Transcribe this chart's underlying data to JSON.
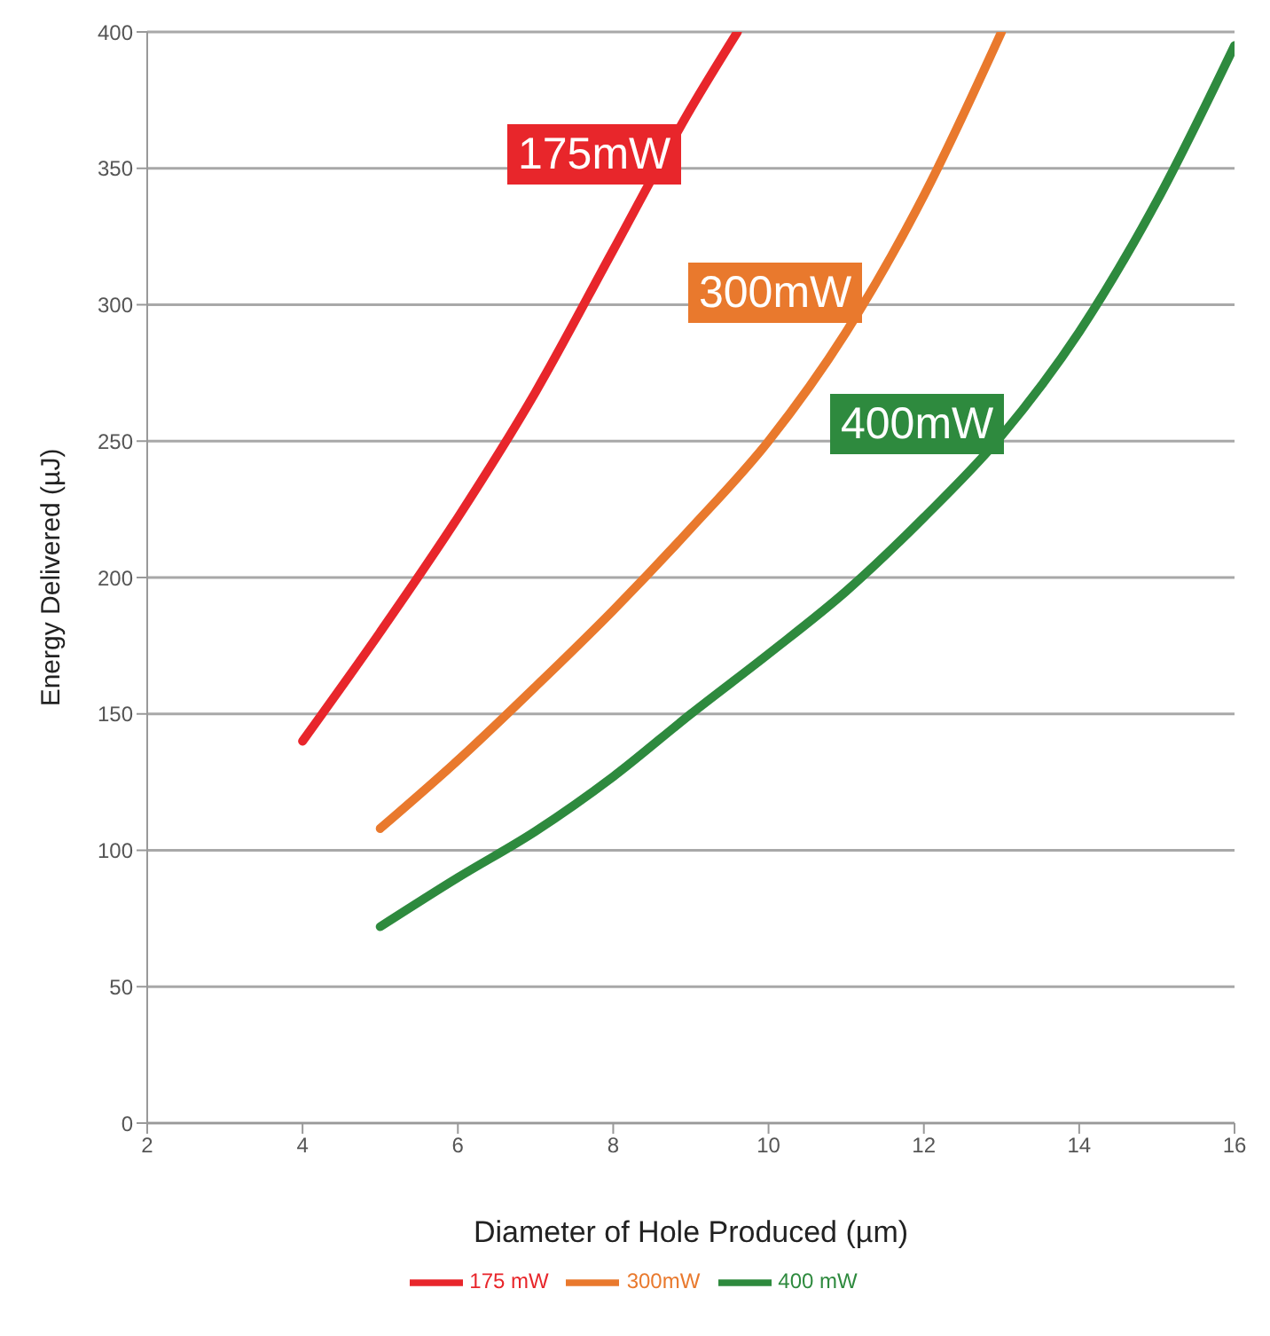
{
  "chart_data": {
    "type": "line",
    "xlabel": "Diameter of Hole Produced (µm)",
    "ylabel": "Energy Delivered (µJ)",
    "xlim": [
      2,
      16
    ],
    "xticks": [
      2,
      4,
      6,
      8,
      10,
      12,
      14,
      16
    ],
    "ylim": [
      0,
      400
    ],
    "yticks": [
      0,
      50,
      100,
      150,
      200,
      250,
      300,
      350,
      400
    ],
    "grid": "y",
    "legend": "bottom",
    "marker": "none",
    "line_style": "solid",
    "series": [
      {
        "name": "175 mW",
        "color": "#e8262b",
        "x": [
          4,
          5,
          6,
          7,
          8,
          9,
          9.6
        ],
        "values": [
          140,
          180,
          222,
          268,
          320,
          372,
          400
        ]
      },
      {
        "name": "300mW",
        "color": "#e9792d",
        "x": [
          5,
          6,
          7,
          8,
          9,
          10,
          11,
          12,
          13
        ],
        "values": [
          108,
          133,
          160,
          188,
          218,
          250,
          290,
          340,
          400
        ]
      },
      {
        "name": "400 mW",
        "color": "#2e8a3e",
        "x": [
          5,
          6,
          7,
          8,
          9,
          10,
          11,
          12,
          13,
          14,
          15,
          16
        ],
        "values": [
          72,
          90,
          107,
          127,
          150,
          172,
          195,
          222,
          252,
          290,
          338,
          395
        ]
      }
    ],
    "annotations": [
      "175mW",
      "300mW",
      "400mW"
    ]
  }
}
